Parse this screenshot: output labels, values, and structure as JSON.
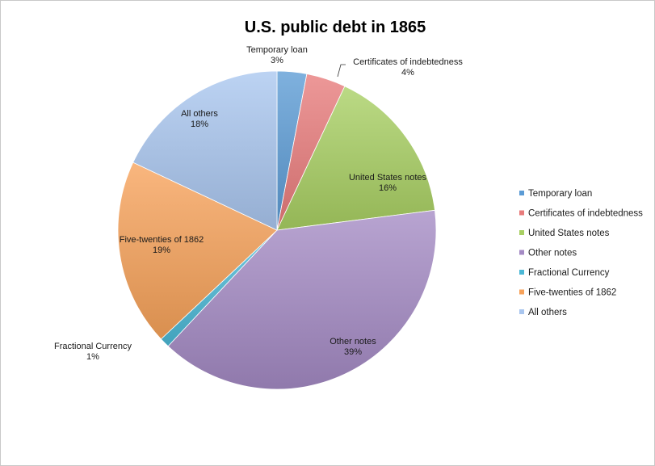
{
  "chart_data": {
    "type": "pie",
    "title": "U.S. public debt in 1865",
    "legend_position": "right",
    "slices": [
      {
        "name": "Temporary loan",
        "value": 3,
        "label": "3%",
        "color": "#5b9bd5"
      },
      {
        "name": "Certificates of indebtedness",
        "value": 4,
        "label": "4%",
        "color": "#e87b7b"
      },
      {
        "name": "United States notes",
        "value": 16,
        "label": "16%",
        "color": "#a8cf62"
      },
      {
        "name": "Other notes",
        "value": 39,
        "label": "39%",
        "color": "#a48ac4"
      },
      {
        "name": "Fractional Currency",
        "value": 1,
        "label": "1%",
        "color": "#4bb8d6"
      },
      {
        "name": "Five-twenties of 1862",
        "value": 19,
        "label": "19%",
        "color": "#f7a25a"
      },
      {
        "name": "All others",
        "value": 18,
        "label": "18%",
        "color": "#a9c6ef"
      }
    ]
  }
}
